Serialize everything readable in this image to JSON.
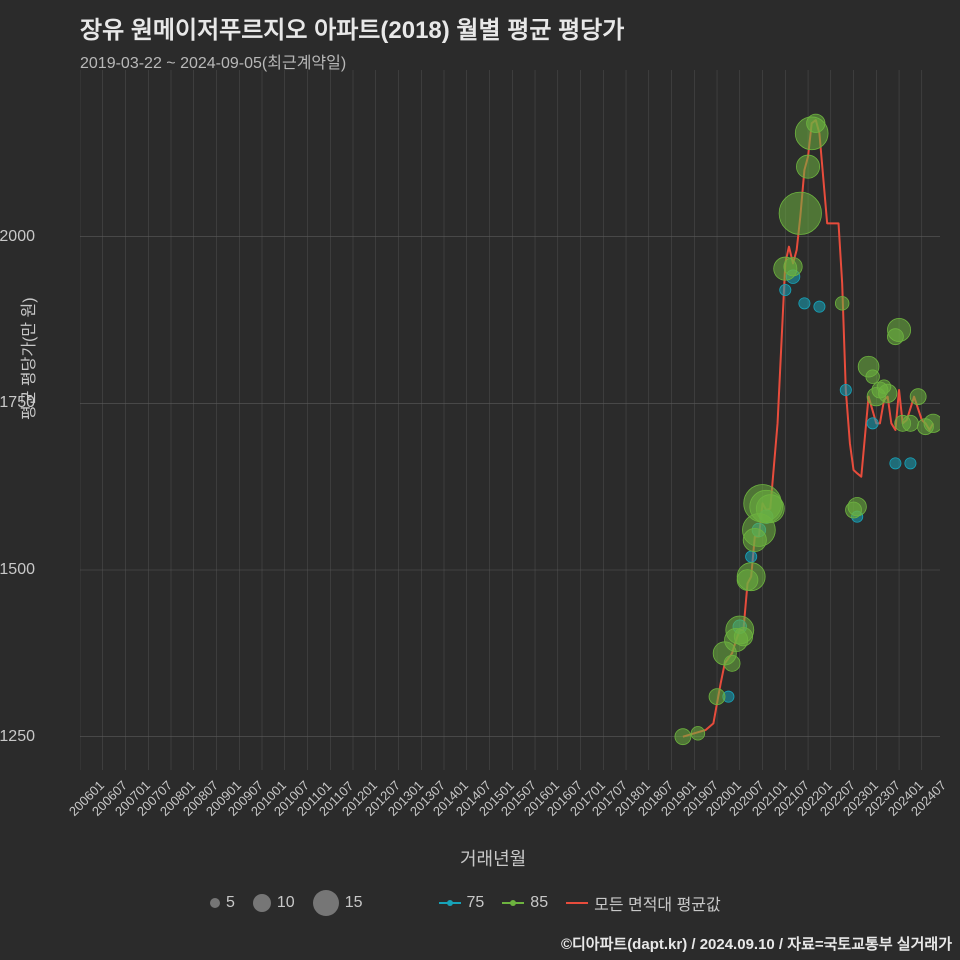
{
  "chart": {
    "type": "scatter+line",
    "title": "장유 원메이저푸르지오 아파트(2018) 월별 평균 평당가",
    "subtitle": "2019-03-22 ~ 2024-09-05(최근계약일)",
    "x_axis_label": "거래년월",
    "y_axis_label": "평균 평당가(만 원)",
    "background_color": "#2b2b2b",
    "grid_color": "#5a5a5a",
    "text_color": "#c8c8c8",
    "title_color": "#e8e8e8",
    "title_fontsize": 24,
    "subtitle_fontsize": 16,
    "label_fontsize": 16,
    "tick_fontsize": 14,
    "x_ticks": [
      "200601",
      "200607",
      "200701",
      "200707",
      "200801",
      "200807",
      "200901",
      "200907",
      "201001",
      "201007",
      "201101",
      "201107",
      "201201",
      "201207",
      "201301",
      "201307",
      "201401",
      "201407",
      "201501",
      "201507",
      "201601",
      "201607",
      "201701",
      "201707",
      "201801",
      "201807",
      "201901",
      "201907",
      "202001",
      "202007",
      "202101",
      "202107",
      "202201",
      "202207",
      "202301",
      "202307",
      "202401",
      "202407"
    ],
    "y_ticks": [
      1250,
      1500,
      1750,
      2000
    ],
    "xlim": [
      2006.0,
      2024.9
    ],
    "ylim": [
      1200,
      2250
    ],
    "line": {
      "color": "#e74c3c",
      "width": 2,
      "label": "모든 면적대 평균값",
      "points": [
        [
          2019.25,
          1250
        ],
        [
          2019.5,
          1255
        ],
        [
          2019.75,
          1260
        ],
        [
          2019.92,
          1270
        ],
        [
          2020.08,
          1330
        ],
        [
          2020.17,
          1360
        ],
        [
          2020.33,
          1375
        ],
        [
          2020.42,
          1395
        ],
        [
          2020.5,
          1410
        ],
        [
          2020.58,
          1410
        ],
        [
          2020.67,
          1480
        ],
        [
          2020.75,
          1490
        ],
        [
          2020.83,
          1550
        ],
        [
          2020.92,
          1550
        ],
        [
          2021.0,
          1600
        ],
        [
          2021.08,
          1590
        ],
        [
          2021.17,
          1592
        ],
        [
          2021.33,
          1720
        ],
        [
          2021.5,
          1960
        ],
        [
          2021.58,
          1985
        ],
        [
          2021.67,
          1960
        ],
        [
          2021.75,
          1980
        ],
        [
          2021.83,
          2030
        ],
        [
          2021.92,
          2100
        ],
        [
          2022.0,
          2120
        ],
        [
          2022.08,
          2170
        ],
        [
          2022.17,
          2175
        ],
        [
          2022.25,
          2155
        ],
        [
          2022.42,
          2020
        ],
        [
          2022.5,
          2020
        ],
        [
          2022.67,
          2020
        ],
        [
          2022.75,
          1930
        ],
        [
          2022.83,
          1770
        ],
        [
          2022.92,
          1690
        ],
        [
          2023.0,
          1650
        ],
        [
          2023.08,
          1645
        ],
        [
          2023.17,
          1640
        ],
        [
          2023.33,
          1760
        ],
        [
          2023.5,
          1720
        ],
        [
          2023.58,
          1720
        ],
        [
          2023.67,
          1755
        ],
        [
          2023.75,
          1760
        ],
        [
          2023.83,
          1720
        ],
        [
          2023.92,
          1710
        ],
        [
          2024.0,
          1770
        ],
        [
          2024.08,
          1720
        ],
        [
          2024.17,
          1725
        ],
        [
          2024.33,
          1760
        ],
        [
          2024.5,
          1725
        ],
        [
          2024.58,
          1720
        ],
        [
          2024.67,
          1710
        ],
        [
          2024.75,
          1720
        ]
      ]
    },
    "series_75": {
      "color": "#17a2b8",
      "fill": "rgba(23,162,184,0.55)",
      "label": "75",
      "points": [
        [
          2020.25,
          1310,
          3
        ],
        [
          2020.5,
          1415,
          4
        ],
        [
          2020.75,
          1520,
          3
        ],
        [
          2020.92,
          1560,
          4
        ],
        [
          2021.08,
          1580,
          4
        ],
        [
          2021.5,
          1920,
          3
        ],
        [
          2021.67,
          1940,
          4
        ],
        [
          2021.92,
          1900,
          3
        ],
        [
          2022.25,
          1895,
          3
        ],
        [
          2022.83,
          1770,
          3
        ],
        [
          2023.08,
          1580,
          3
        ],
        [
          2023.42,
          1720,
          3
        ],
        [
          2023.92,
          1660,
          3
        ],
        [
          2024.25,
          1660,
          3
        ]
      ]
    },
    "series_85": {
      "color": "#6db33f",
      "fill": "rgba(109,179,63,0.55)",
      "label": "85",
      "points": [
        [
          2019.25,
          1250,
          5
        ],
        [
          2019.58,
          1255,
          4
        ],
        [
          2020.0,
          1310,
          5
        ],
        [
          2020.17,
          1375,
          8
        ],
        [
          2020.33,
          1360,
          5
        ],
        [
          2020.42,
          1395,
          8
        ],
        [
          2020.5,
          1410,
          10
        ],
        [
          2020.58,
          1400,
          6
        ],
        [
          2020.67,
          1485,
          7
        ],
        [
          2020.75,
          1490,
          10
        ],
        [
          2020.83,
          1545,
          8
        ],
        [
          2020.92,
          1560,
          12
        ],
        [
          2021.0,
          1600,
          14
        ],
        [
          2021.08,
          1595,
          12
        ],
        [
          2021.17,
          1592,
          10
        ],
        [
          2021.5,
          1952,
          8
        ],
        [
          2021.67,
          1955,
          6
        ],
        [
          2021.83,
          2035,
          16
        ],
        [
          2022.0,
          2105,
          8
        ],
        [
          2022.08,
          2155,
          12
        ],
        [
          2022.17,
          2170,
          6
        ],
        [
          2022.75,
          1900,
          4
        ],
        [
          2023.0,
          1590,
          5
        ],
        [
          2023.08,
          1595,
          6
        ],
        [
          2023.33,
          1805,
          7
        ],
        [
          2023.42,
          1790,
          4
        ],
        [
          2023.5,
          1760,
          6
        ],
        [
          2023.58,
          1770,
          5
        ],
        [
          2023.67,
          1775,
          4
        ],
        [
          2023.75,
          1765,
          6
        ],
        [
          2023.92,
          1850,
          5
        ],
        [
          2024.0,
          1860,
          8
        ],
        [
          2024.08,
          1720,
          5
        ],
        [
          2024.25,
          1720,
          5
        ],
        [
          2024.42,
          1760,
          5
        ],
        [
          2024.58,
          1715,
          5
        ],
        [
          2024.75,
          1720,
          6
        ]
      ]
    },
    "size_legend": {
      "label": "",
      "sizes": [
        5,
        10,
        15
      ]
    },
    "credit": "©디아파트(dapt.kr) / 2024.09.10 / 자료=국토교통부 실거래가"
  }
}
